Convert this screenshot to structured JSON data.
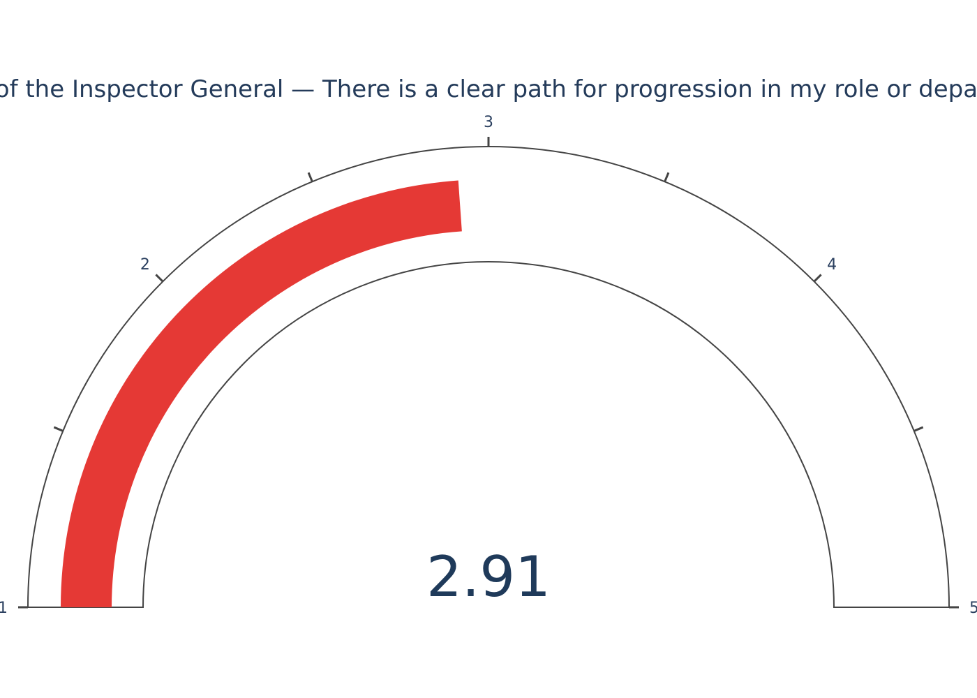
{
  "chart_data": {
    "type": "gauge",
    "title": "Office of the Inspector General — There is a clear path for progression in my role or department",
    "value": 2.91,
    "value_label": "2.91",
    "range": [
      1,
      5
    ],
    "major_ticks": [
      1,
      2,
      3,
      4,
      5
    ],
    "tick_labels": [
      "1",
      "2",
      "3",
      "4",
      "5"
    ],
    "minor_ticks": [
      1.5,
      2.5,
      3.5,
      4.5
    ],
    "colors": {
      "bar": "#e53935",
      "outline": "#444444",
      "text": "#2a3f5f",
      "value": "#1f3a5a",
      "background": "#ffffff"
    }
  }
}
